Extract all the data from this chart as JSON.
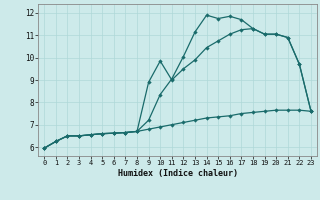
{
  "xlabel": "Humidex (Indice chaleur)",
  "xlim": [
    -0.5,
    23.5
  ],
  "ylim": [
    5.6,
    12.4
  ],
  "xticks": [
    0,
    1,
    2,
    3,
    4,
    5,
    6,
    7,
    8,
    9,
    10,
    11,
    12,
    13,
    14,
    15,
    16,
    17,
    18,
    19,
    20,
    21,
    22,
    23
  ],
  "yticks": [
    6,
    7,
    8,
    9,
    10,
    11,
    12
  ],
  "background_color": "#cdeaea",
  "grid_color": "#afd8d8",
  "line_color": "#1a6b6b",
  "curve1_x": [
    0,
    1,
    2,
    3,
    4,
    5,
    6,
    7,
    8,
    9,
    10,
    11,
    12,
    13,
    14,
    15,
    16,
    17,
    18,
    19,
    20,
    21,
    22,
    23
  ],
  "curve1_y": [
    5.95,
    6.25,
    6.5,
    6.5,
    6.55,
    6.6,
    6.62,
    6.65,
    6.7,
    7.2,
    8.35,
    9.05,
    10.05,
    11.15,
    11.9,
    11.75,
    11.85,
    11.7,
    11.3,
    11.05,
    11.05,
    10.9,
    9.7,
    7.6
  ],
  "curve2_x": [
    0,
    1,
    2,
    3,
    4,
    5,
    6,
    7,
    8,
    9,
    10,
    11,
    12,
    13,
    14,
    15,
    16,
    17,
    18,
    19,
    20,
    21,
    22,
    23
  ],
  "curve2_y": [
    5.95,
    6.25,
    6.5,
    6.5,
    6.55,
    6.6,
    6.62,
    6.65,
    6.7,
    8.9,
    9.85,
    9.0,
    9.5,
    9.9,
    10.45,
    10.75,
    11.05,
    11.25,
    11.3,
    11.05,
    11.05,
    10.9,
    9.7,
    7.6
  ],
  "curve3_x": [
    0,
    1,
    2,
    3,
    4,
    5,
    6,
    7,
    8,
    9,
    10,
    11,
    12,
    13,
    14,
    15,
    16,
    17,
    18,
    19,
    20,
    21,
    22,
    23
  ],
  "curve3_y": [
    5.95,
    6.25,
    6.5,
    6.5,
    6.55,
    6.6,
    6.62,
    6.65,
    6.7,
    6.8,
    6.9,
    7.0,
    7.1,
    7.2,
    7.3,
    7.35,
    7.4,
    7.5,
    7.55,
    7.6,
    7.65,
    7.65,
    7.65,
    7.6
  ]
}
